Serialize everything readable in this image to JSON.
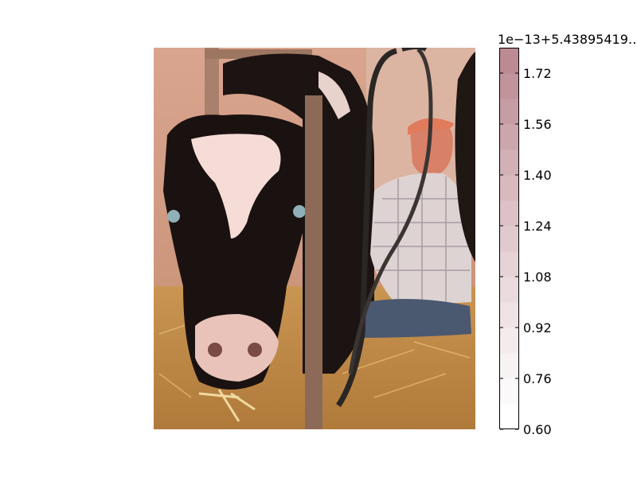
{
  "chart_data": {
    "type": "heatmap",
    "image_description": "photograph of a black-and-white cow in a barn stall with a farmer in a plaid shirt behind it",
    "colorbar": {
      "offset_text": "1e−13+5.43895419…",
      "ticks": [
        "0.60",
        "0.76",
        "0.92",
        "1.08",
        "1.24",
        "1.40",
        "1.56",
        "1.72"
      ],
      "tick_values": [
        0.6,
        0.76,
        0.92,
        1.08,
        1.24,
        1.4,
        1.56,
        1.72
      ],
      "range": [
        0.6,
        1.8
      ],
      "num_levels": 15,
      "cmap_low": "#ffffff",
      "cmap_high": "#bc8a93"
    }
  }
}
